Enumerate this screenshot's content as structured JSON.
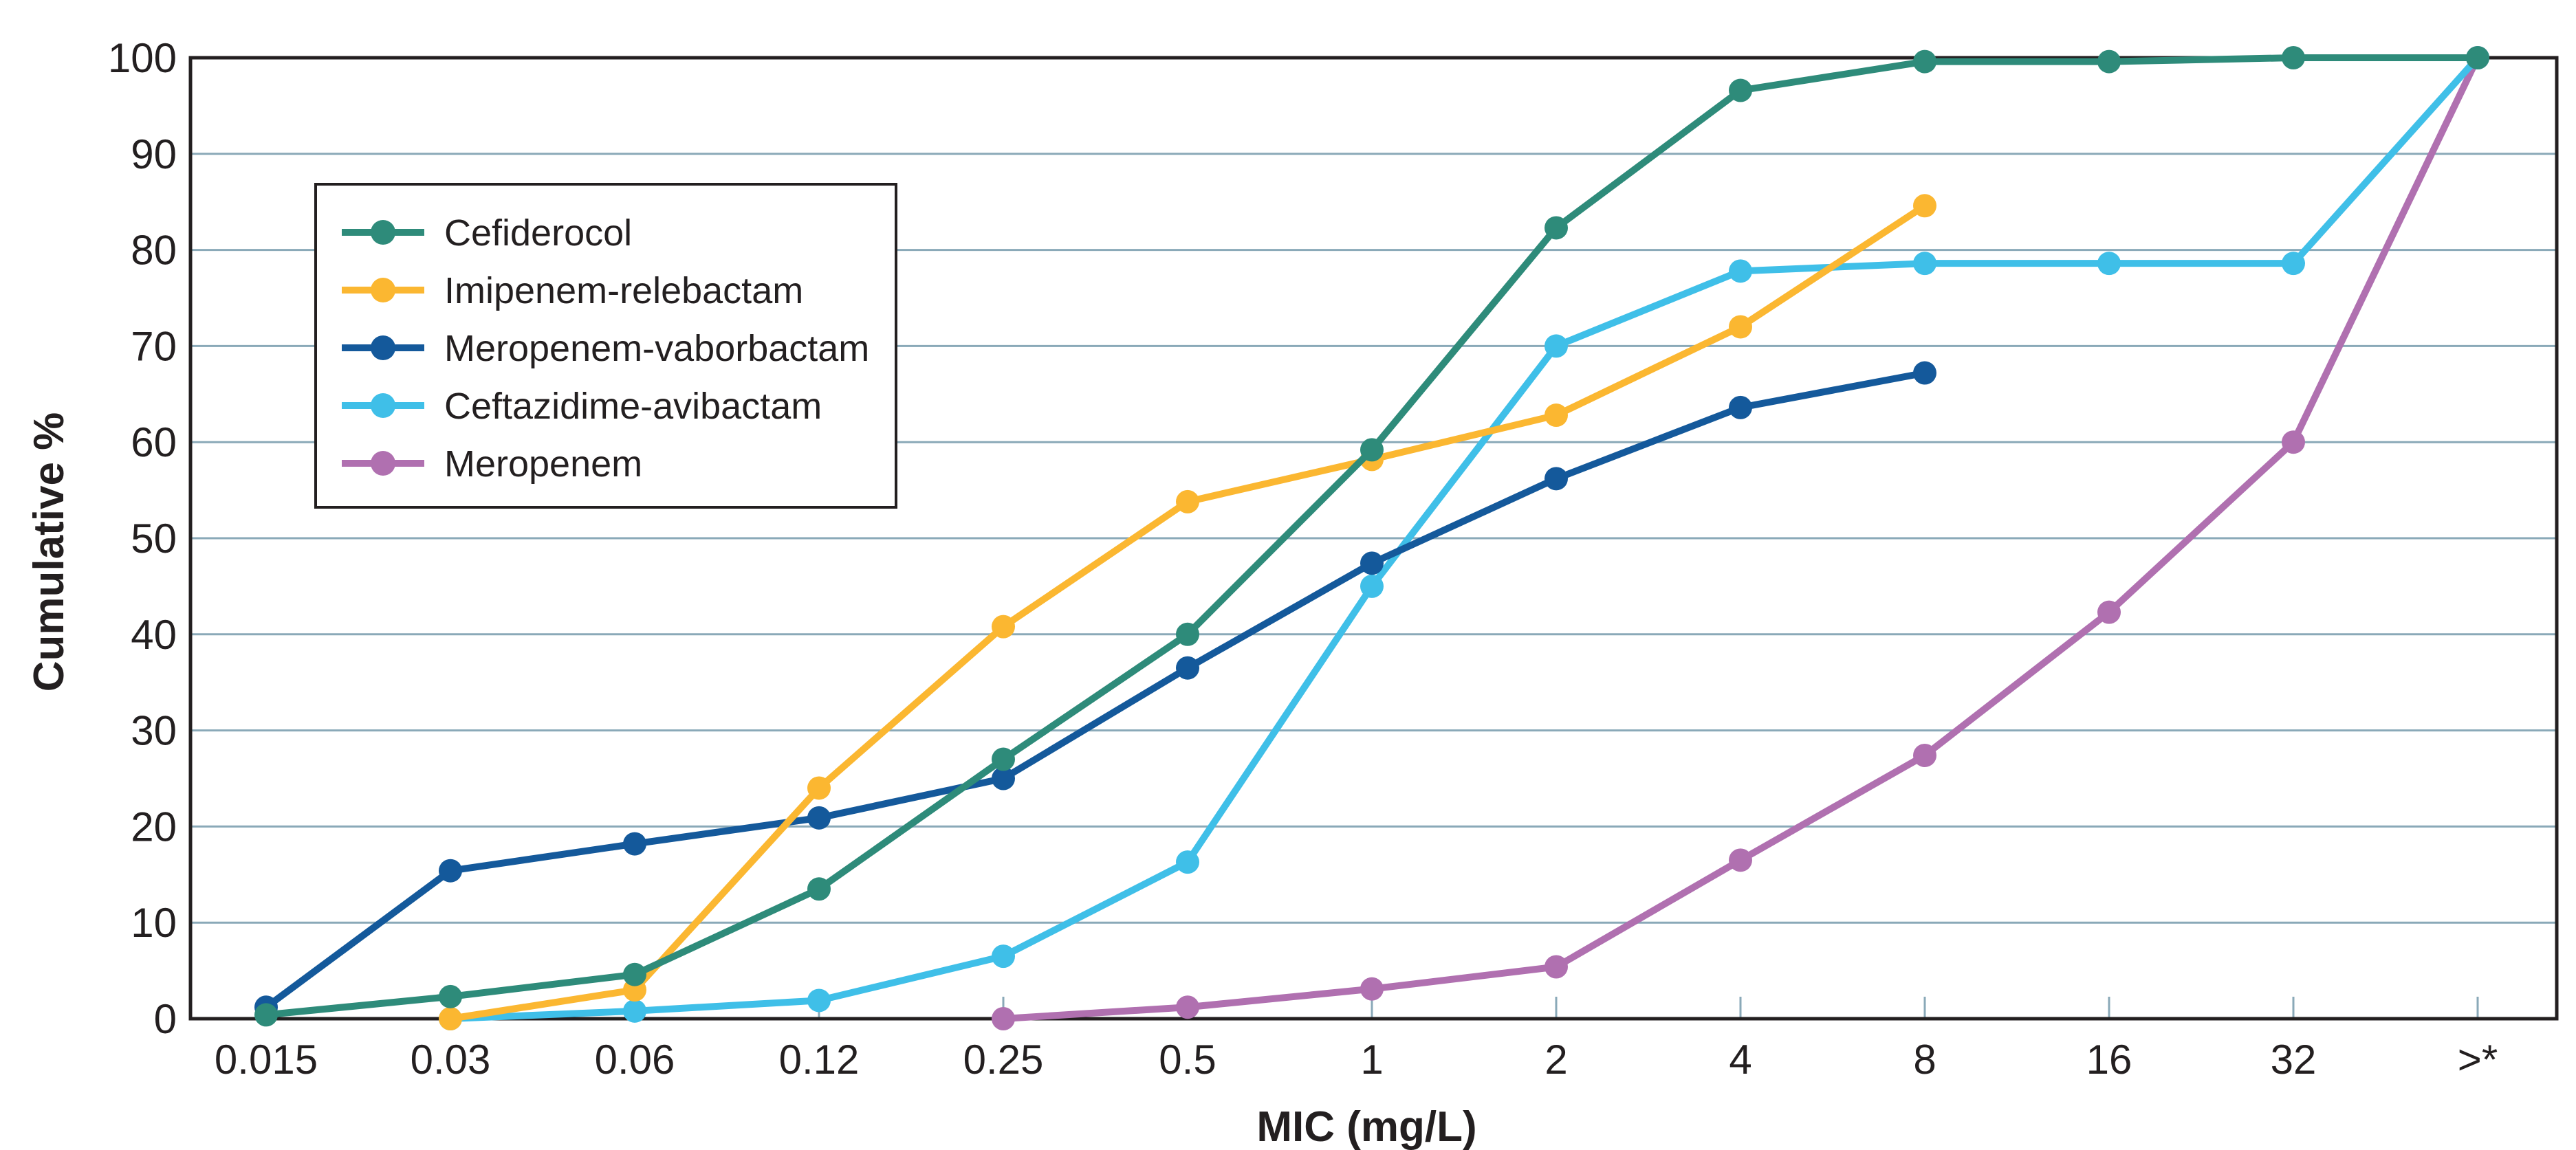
{
  "chart_data": {
    "type": "line",
    "xlabel": "MIC (mg/L)",
    "ylabel": "Cumulative %",
    "categories": [
      "0.015",
      "0.03",
      "0.06",
      "0.12",
      "0.25",
      "0.5",
      "1",
      "2",
      "4",
      "8",
      "16",
      "32",
      ">*"
    ],
    "ylim": [
      0,
      100
    ],
    "yticks": [
      0,
      10,
      20,
      30,
      40,
      50,
      60,
      70,
      80,
      90,
      100
    ],
    "grid": "horizontal",
    "legend_position": "top-left",
    "series": [
      {
        "name": "Cefiderocol",
        "color": "#2e8b7a",
        "values": [
          0.4,
          2.3,
          4.6,
          13.5,
          27,
          40,
          59.2,
          82.3,
          96.6,
          99.6,
          99.6,
          100,
          100
        ]
      },
      {
        "name": "Imipenem-relebactam",
        "color": "#fbb731",
        "values": [
          null,
          0,
          3,
          24,
          40.8,
          53.8,
          58.2,
          62.8,
          72,
          84.6,
          null,
          null,
          null
        ]
      },
      {
        "name": "Meropenem-vaborbactam",
        "color": "#14599b",
        "values": [
          1.2,
          15.4,
          18.2,
          20.9,
          25,
          36.5,
          47.4,
          56.2,
          63.6,
          67.2,
          null,
          null,
          null
        ]
      },
      {
        "name": "Ceftazidime-avibactam",
        "color": "#3fbfe8",
        "values": [
          null,
          0,
          0.8,
          1.9,
          6.5,
          16.3,
          45,
          70,
          77.8,
          78.6,
          78.6,
          78.6,
          100
        ]
      },
      {
        "name": "Meropenem",
        "color": "#b070b0",
        "values": [
          null,
          null,
          null,
          null,
          0,
          1.2,
          3.1,
          5.4,
          16.5,
          27.4,
          42.3,
          60,
          100
        ]
      }
    ]
  }
}
